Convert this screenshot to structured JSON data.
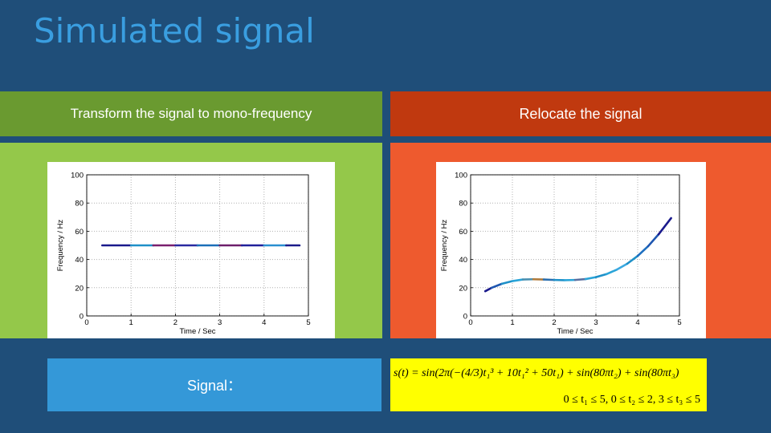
{
  "slide": {
    "title": "Simulated signal",
    "left_header": "Transform the signal to mono-frequency",
    "right_header": "Relocate the signal",
    "signal_label": "Signal：",
    "formula_line1": "s(t) = sin(2π(−(4/3)t₁³ + 10t₁² + 50t₁) + sin(80πt₂) + sin(80πt₃)",
    "formula_line2": "0 ≤ t₁ ≤ 5, 0 ≤ t₂ ≤ 2, 3 ≤ t₃ ≤ 5"
  },
  "colors": {
    "background": "#1f4e79",
    "title": "#3a9ee0",
    "left_header": "#6a9a30",
    "right_header": "#c0390f",
    "left_panel": "#94c84a",
    "right_panel": "#ee5a2e",
    "signal_box": "#3498d8",
    "formula_box": "#ffff00"
  },
  "chart_data": [
    {
      "type": "line",
      "xlabel": "Time / Sec",
      "ylabel": "Frequency / Hz",
      "xlim": [
        0,
        5
      ],
      "ylim": [
        0,
        100
      ],
      "xticks": [
        "0",
        "1",
        "2",
        "3",
        "4",
        "5"
      ],
      "yticks": [
        "0",
        "20",
        "40",
        "60",
        "80",
        "100"
      ],
      "grid": true,
      "series": [
        {
          "x": [
            0.35,
            1.0,
            1.5,
            2.0,
            2.5,
            3.0,
            3.5,
            4.0,
            4.5,
            4.8
          ],
          "y": [
            50,
            50,
            50,
            50,
            50,
            50,
            50,
            50,
            50,
            50
          ]
        }
      ]
    },
    {
      "type": "line",
      "xlabel": "Time / Sec",
      "ylabel": "Frequency / Hz",
      "xlim": [
        0,
        5
      ],
      "ylim": [
        0,
        100
      ],
      "xticks": [
        "0",
        "1",
        "2",
        "3",
        "4",
        "5"
      ],
      "yticks": [
        "0",
        "20",
        "40",
        "60",
        "80",
        "100"
      ],
      "grid": true,
      "series": [
        {
          "x": [
            0.35,
            0.5,
            0.75,
            1.0,
            1.25,
            1.5,
            1.75,
            2.0,
            2.25,
            2.5,
            2.75,
            3.0,
            3.25,
            3.5,
            3.75,
            4.0,
            4.25,
            4.5,
            4.8
          ],
          "y": [
            17.5,
            19.9,
            22.8,
            24.7,
            25.8,
            26.0,
            25.8,
            25.5,
            25.3,
            25.5,
            26.1,
            27.5,
            29.6,
            32.8,
            37.0,
            42.5,
            49.4,
            57.8,
            69.3
          ]
        }
      ]
    }
  ]
}
